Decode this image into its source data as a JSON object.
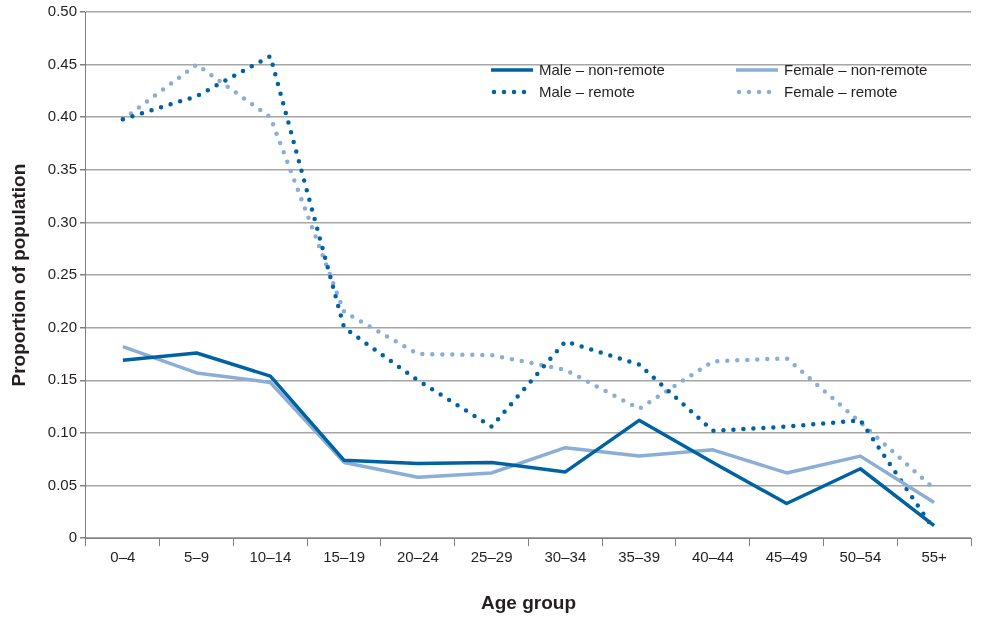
{
  "chart_data": {
    "type": "line",
    "xlabel": "Age group",
    "ylabel": "Proportion of population",
    "categories": [
      "0–4",
      "5–9",
      "10–14",
      "15–19",
      "20–24",
      "25–29",
      "30–34",
      "35–39",
      "40–44",
      "45–49",
      "50–54",
      "55+"
    ],
    "ylim": [
      0,
      0.5
    ],
    "yticks": [
      0,
      {
        "value": 0.05,
        "label": "0.05"
      },
      {
        "value": 0.1,
        "label": "0.10"
      },
      {
        "value": 0.15,
        "label": "0.15"
      },
      {
        "value": 0.2,
        "label": "0.20"
      },
      {
        "value": 0.25,
        "label": "0.25"
      },
      {
        "value": 0.3,
        "label": "0.30"
      },
      {
        "value": 0.35,
        "label": "0.35"
      },
      {
        "value": 0.4,
        "label": "0.40"
      },
      {
        "value": 0.45,
        "label": "0.45"
      },
      {
        "value": 0.5,
        "label": "0.50"
      }
    ],
    "grid": "y",
    "legend": "top right",
    "marker": "none",
    "series": [
      {
        "name": "Male – non-remote",
        "color": "#0062a3",
        "line_style": "solid",
        "values": [
          0.169,
          0.176,
          0.154,
          0.074,
          0.071,
          0.072,
          0.063,
          0.112,
          0.072,
          0.033,
          0.066,
          0.012
        ]
      },
      {
        "name": "Female – non-remote",
        "color": "#8aaed6",
        "line_style": "solid",
        "values": [
          0.182,
          0.157,
          0.148,
          0.072,
          0.058,
          0.062,
          0.086,
          0.078,
          0.084,
          0.062,
          0.078,
          0.034
        ]
      },
      {
        "name": "Male – remote",
        "color": "#0062a3",
        "line_style": "dotted",
        "values": [
          0.398,
          0.42,
          0.458,
          0.2,
          0.15,
          0.106,
          0.187,
          0.165,
          0.102,
          0.106,
          0.112,
          0.008
        ]
      },
      {
        "name": "Female – remote",
        "color": "#8aaed6",
        "line_style": "dotted",
        "values": [
          0.398,
          0.45,
          0.4,
          0.215,
          0.175,
          0.174,
          0.16,
          0.123,
          0.168,
          0.171,
          0.11,
          0.047
        ]
      }
    ]
  }
}
